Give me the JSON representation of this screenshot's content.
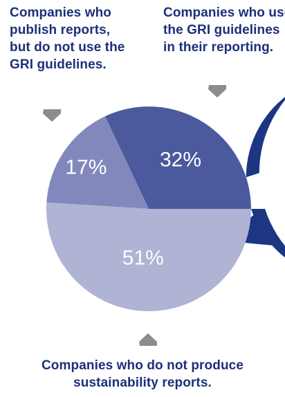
{
  "labels": {
    "non_gri": [
      "Companies who",
      "publish reports,",
      "but do not use the",
      "GRI guidelines."
    ],
    "gri": [
      "Companies who use",
      "the GRI guidelines",
      "in their reporting."
    ],
    "no_report": [
      "Companies who do not produce",
      "sustainability reports."
    ]
  },
  "colors": {
    "ring": "#1c3683",
    "slice_gri": "#4a5a9d",
    "slice_non_gri": "#8388bc",
    "slice_none": "#afb3d4",
    "pointer": "#8c8c8c",
    "label_text": "#1c2f7a"
  },
  "icons": [
    "arrow-down-icon",
    "arrow-down-icon",
    "arrow-up-icon"
  ],
  "chart_data": {
    "type": "pie",
    "slices": [
      {
        "label": "32%",
        "value": 32
      },
      {
        "label": "17%",
        "value": 17
      },
      {
        "label": "51%",
        "value": 51
      }
    ]
  }
}
